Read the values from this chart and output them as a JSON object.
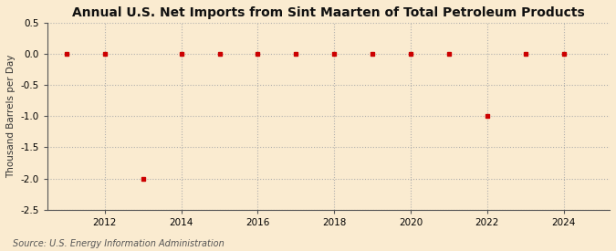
{
  "title": "Annual U.S. Net Imports from Sint Maarten of Total Petroleum Products",
  "ylabel": "Thousand Barrels per Day",
  "source": "Source: U.S. Energy Information Administration",
  "background_color": "#faebd0",
  "plot_bg_color": "#faebd0",
  "x_data": [
    2011,
    2012,
    2013,
    2014,
    2015,
    2016,
    2017,
    2018,
    2019,
    2020,
    2021,
    2022,
    2023,
    2024
  ],
  "y_data": [
    0,
    0,
    -2.0,
    0,
    0,
    0,
    0,
    0,
    0,
    0,
    0,
    -1.0,
    0,
    0
  ],
  "xlim": [
    2010.5,
    2025.2
  ],
  "ylim": [
    -2.5,
    0.5
  ],
  "yticks": [
    0.5,
    0.0,
    -0.5,
    -1.0,
    -1.5,
    -2.0,
    -2.5
  ],
  "xticks": [
    2012,
    2014,
    2016,
    2018,
    2020,
    2022,
    2024
  ],
  "marker_color": "#cc0000",
  "marker": "s",
  "marker_size": 3.5,
  "grid_color": "#aaaaaa",
  "grid_style": ":",
  "title_fontsize": 10,
  "label_fontsize": 7.5,
  "tick_fontsize": 7.5,
  "source_fontsize": 7
}
